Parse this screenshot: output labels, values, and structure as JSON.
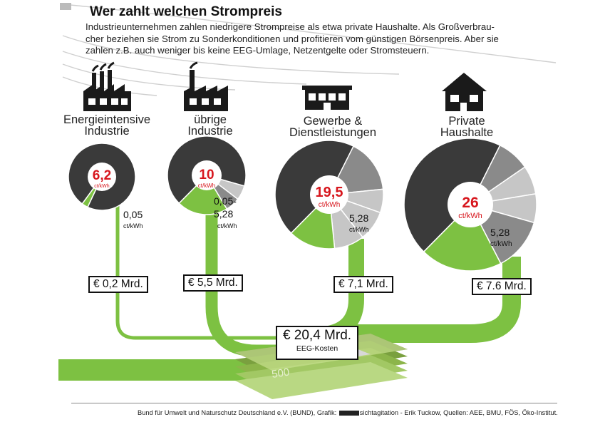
{
  "title": "Wer zahlt welchen Strompreis",
  "intro_lines": [
    "Industrieunternehmen zahlen niedrigere Strompreise als etwa private Haushalte. Als Großverbrau-",
    "cher beziehen sie Strom zu Sonderkonditionen und profitieren vom günstigen Börsenpreis. Aber sie",
    "zahlen z.B. auch weniger bis keine EEG-Umlage, Netzentgelte oder Stromsteuern."
  ],
  "colors": {
    "green": "#7dc142",
    "dark": "#3a3a3a",
    "mid": "#8a8a8a",
    "light": "#c6c6c6",
    "red": "#d7161d"
  },
  "categories": [
    {
      "name_lines": [
        "Energieintensive",
        "Industrie"
      ],
      "icon": "factory-chimneys-icon",
      "price": "6,2",
      "unit": "ct/kWh",
      "eeg_label_lines": [
        "0,05",
        "ct/kWh"
      ],
      "eeg_amount": "€ 0,2 Mrd.",
      "slices": [
        {
          "value": 97,
          "color": "dark"
        },
        {
          "value": 3,
          "color": "green"
        }
      ]
    },
    {
      "name_lines": [
        "übrige",
        "Industrie"
      ],
      "icon": "factory-icon",
      "price": "10",
      "unit": "ct/kWh",
      "eeg_label_lines": [
        "0,05-",
        "5,28",
        "ct/kWh"
      ],
      "eeg_amount": "€ 5,5 Mrd.",
      "slices": [
        {
          "value": 67,
          "color": "dark"
        },
        {
          "value": 6,
          "color": "light"
        },
        {
          "value": 6,
          "color": "mid"
        },
        {
          "value": 21,
          "color": "green"
        }
      ]
    },
    {
      "name_lines": [
        "Gewerbe &",
        "Dienstleistungen"
      ],
      "icon": "shop-icon",
      "price": "19,5",
      "unit": "ct/kWh",
      "eeg_label_lines": [
        "5,28",
        "ct/kWh"
      ],
      "eeg_amount": "€ 7,1 Mrd.",
      "slices": [
        {
          "value": 45,
          "color": "dark"
        },
        {
          "value": 16,
          "color": "mid"
        },
        {
          "value": 7,
          "color": "light"
        },
        {
          "value": 9,
          "color": "light"
        },
        {
          "value": 9,
          "color": "light"
        },
        {
          "value": 14,
          "color": "green"
        }
      ]
    },
    {
      "name_lines": [
        "Private",
        "Haushalte"
      ],
      "icon": "house-icon",
      "price": "26",
      "unit": "ct/kWh",
      "eeg_label_lines": [
        "5,28",
        "ct/kWh"
      ],
      "eeg_amount": "€ 7.6 Mrd.",
      "slices": [
        {
          "value": 45,
          "color": "dark"
        },
        {
          "value": 8,
          "color": "mid"
        },
        {
          "value": 7,
          "color": "light"
        },
        {
          "value": 7,
          "color": "light"
        },
        {
          "value": 13,
          "color": "mid"
        },
        {
          "value": 20,
          "color": "green"
        }
      ]
    }
  ],
  "total": {
    "amount": "€ 20,4 Mrd.",
    "label": "EEG-Kosten"
  },
  "banknote_value": "500",
  "credit_before": "Bund für Umwelt und Naturschutz Deutschland e.V. (BUND), Grafik: ",
  "credit_after": "sichtagitation - Erik Tuckow, Quellen: AEE, BMU, FÖS, Öko-Institut."
}
